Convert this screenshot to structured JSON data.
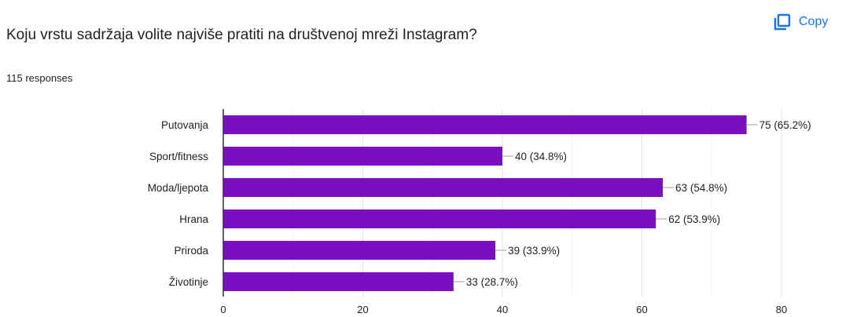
{
  "header": {
    "title": "Koju vrstu sadržaja volite najviše pratiti na društvenoj mreži Instagram?",
    "responses": "115 responses",
    "copy_label": "Copy",
    "copy_icon": "copy-icon"
  },
  "colors": {
    "bar": "#7b0fbf",
    "accent": "#1a73e8"
  },
  "chart_data": {
    "type": "bar",
    "orientation": "horizontal",
    "categories": [
      "Putovanja",
      "Sport/fitness",
      "Moda/ljepota",
      "Hrana",
      "Priroda",
      "Životinje"
    ],
    "values": [
      75,
      40,
      63,
      62,
      39,
      33
    ],
    "data_labels": [
      "75 (65.2%)",
      "40 (34.8%)",
      "63 (54.8%)",
      "62 (53.9%)",
      "39 (33.9%)",
      "33 (28.7%)"
    ],
    "xlim": [
      0,
      80
    ],
    "xticks": [
      0,
      20,
      40,
      60,
      80
    ],
    "grid": true
  }
}
